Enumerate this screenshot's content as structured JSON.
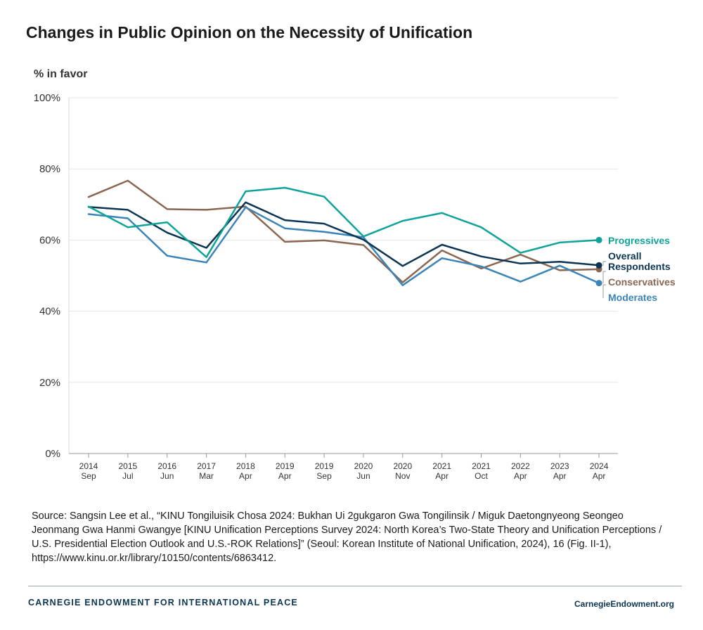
{
  "chart_data": {
    "type": "line",
    "title": "Changes in Public Opinion on the Necessity of Unification",
    "ylabel": "% in favor",
    "xlabel": "",
    "ylim": [
      0,
      100
    ],
    "y_ticks": [
      "0%",
      "20%",
      "40%",
      "60%",
      "80%",
      "100%"
    ],
    "grid": true,
    "legend": "direct labels at line ends (right)",
    "categories": [
      [
        "2014",
        "Sep"
      ],
      [
        "2015",
        "Jul"
      ],
      [
        "2016",
        "Jun"
      ],
      [
        "2017",
        "Mar"
      ],
      [
        "2018",
        "Apr"
      ],
      [
        "2019",
        "Apr"
      ],
      [
        "2019",
        "Sep"
      ],
      [
        "2020",
        "Jun"
      ],
      [
        "2020",
        "Nov"
      ],
      [
        "2021",
        "Apr"
      ],
      [
        "2021",
        "Oct"
      ],
      [
        "2022",
        "Apr"
      ],
      [
        "2023",
        "Apr"
      ],
      [
        "2024",
        "Apr"
      ]
    ],
    "series": [
      {
        "name": "Progressives",
        "color": "#0fa39a",
        "values": [
          69.4,
          63.6,
          65.0,
          55.2,
          73.7,
          74.7,
          72.2,
          61.0,
          65.4,
          67.6,
          63.6,
          56.4,
          59.3,
          60.0
        ]
      },
      {
        "name": "Overall Respondents",
        "color": "#0b3553",
        "values": [
          69.3,
          68.5,
          62.1,
          57.8,
          70.6,
          65.6,
          64.6,
          60.1,
          52.7,
          58.7,
          55.4,
          53.4,
          53.9,
          52.9
        ]
      },
      {
        "name": "Conservatives",
        "color": "#8b6650",
        "values": [
          72.1,
          76.7,
          68.7,
          68.5,
          69.4,
          59.5,
          59.9,
          58.6,
          48.1,
          57.1,
          52.0,
          55.9,
          51.5,
          51.8
        ]
      },
      {
        "name": "Moderates",
        "color": "#3a84b8",
        "values": [
          67.3,
          66.1,
          55.6,
          53.7,
          69.2,
          63.3,
          62.3,
          60.8,
          47.3,
          54.9,
          52.6,
          48.3,
          52.8,
          47.9
        ]
      }
    ]
  },
  "source": "Source: Sangsin Lee et al., “KINU Tongiluisik Chosa 2024: Bukhan Ui 2gukgaron Gwa Tongilinsik / Miguk Daetongnyeong Seongeo Jeonmang Gwa Hanmi Gwangye [KINU Unification Perceptions Survey 2024: North Korea’s Two-State Theory and Unification Perceptions / U.S. Presidential Election Outlook and U.S.-ROK Relations]” (Seoul: Korean Institute of National Unification, 2024), 16 (Fig. II-1), https://www.kinu.or.kr/library/10150/contents/6863412.",
  "footer": {
    "org": "CARNEGIE ENDOWMENT FOR INTERNATIONAL PEACE",
    "site": "CarnegieEndowment.org"
  }
}
